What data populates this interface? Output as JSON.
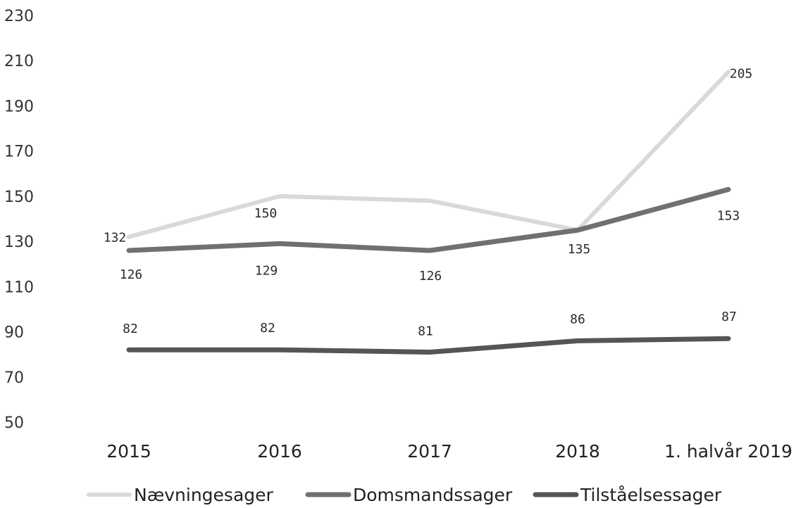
{
  "chart_data": {
    "type": "line",
    "categories": [
      "2015",
      "2016",
      "2017",
      "2018",
      "1. halvår 2019"
    ],
    "ylim": [
      50,
      230
    ],
    "yticks": [
      230,
      210,
      190,
      170,
      150,
      130,
      110,
      90,
      70,
      50
    ],
    "grid": false,
    "legend_position": "bottom",
    "series": [
      {
        "name": "Nævningesager",
        "values": [
          132,
          150,
          148,
          135,
          205
        ],
        "labels": [
          "132",
          "150",
          "",
          "",
          "205"
        ],
        "color": "#d9d9d9"
      },
      {
        "name": "Domsmandssager",
        "values": [
          126,
          129,
          126,
          135,
          153
        ],
        "labels": [
          "126",
          "129",
          "126",
          "135",
          "153"
        ],
        "color": "#707070"
      },
      {
        "name": "Tilståelsessager",
        "values": [
          82,
          82,
          81,
          86,
          87
        ],
        "labels": [
          "82",
          "82",
          "81",
          "86",
          "87"
        ],
        "color": "#555555"
      }
    ]
  }
}
